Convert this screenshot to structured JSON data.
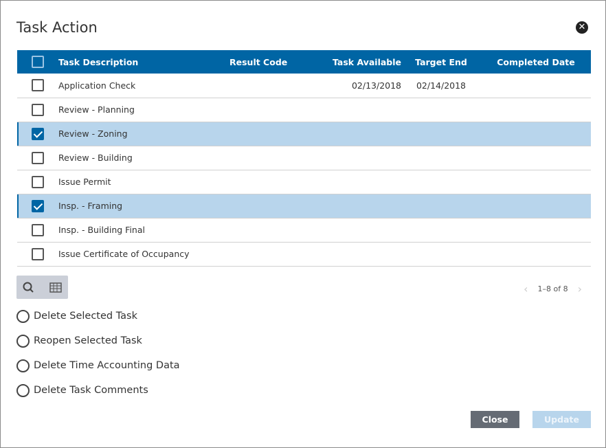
{
  "dialog": {
    "title": "Task Action"
  },
  "table": {
    "headers": [
      "Task Description",
      "Result Code",
      "Task Available",
      "Target End",
      "Completed Date"
    ],
    "rows": [
      {
        "checked": false,
        "description": "Application Check",
        "result_code": "",
        "task_available": "02/13/2018",
        "target_end": "02/14/2018",
        "completed_date": ""
      },
      {
        "checked": false,
        "description": "Review - Planning",
        "result_code": "",
        "task_available": "",
        "target_end": "",
        "completed_date": ""
      },
      {
        "checked": true,
        "description": "Review - Zoning",
        "result_code": "",
        "task_available": "",
        "target_end": "",
        "completed_date": ""
      },
      {
        "checked": false,
        "description": "Review - Building",
        "result_code": "",
        "task_available": "",
        "target_end": "",
        "completed_date": ""
      },
      {
        "checked": false,
        "description": "Issue Permit",
        "result_code": "",
        "task_available": "",
        "target_end": "",
        "completed_date": ""
      },
      {
        "checked": true,
        "description": "Insp. - Framing",
        "result_code": "",
        "task_available": "",
        "target_end": "",
        "completed_date": ""
      },
      {
        "checked": false,
        "description": "Insp. - Building Final",
        "result_code": "",
        "task_available": "",
        "target_end": "",
        "completed_date": ""
      },
      {
        "checked": false,
        "description": "Issue Certificate of Occupancy",
        "result_code": "",
        "task_available": "",
        "target_end": "",
        "completed_date": ""
      }
    ]
  },
  "pager": {
    "text": "1–8 of 8"
  },
  "options": [
    "Delete Selected Task",
    "Reopen Selected Task",
    "Delete Time Accounting Data",
    "Delete Task Comments"
  ],
  "buttons": {
    "close": "Close",
    "update": "Update"
  },
  "colors": {
    "header": "#0065a4",
    "selected_row": "#b8d5ec",
    "close_button": "#656b74"
  }
}
